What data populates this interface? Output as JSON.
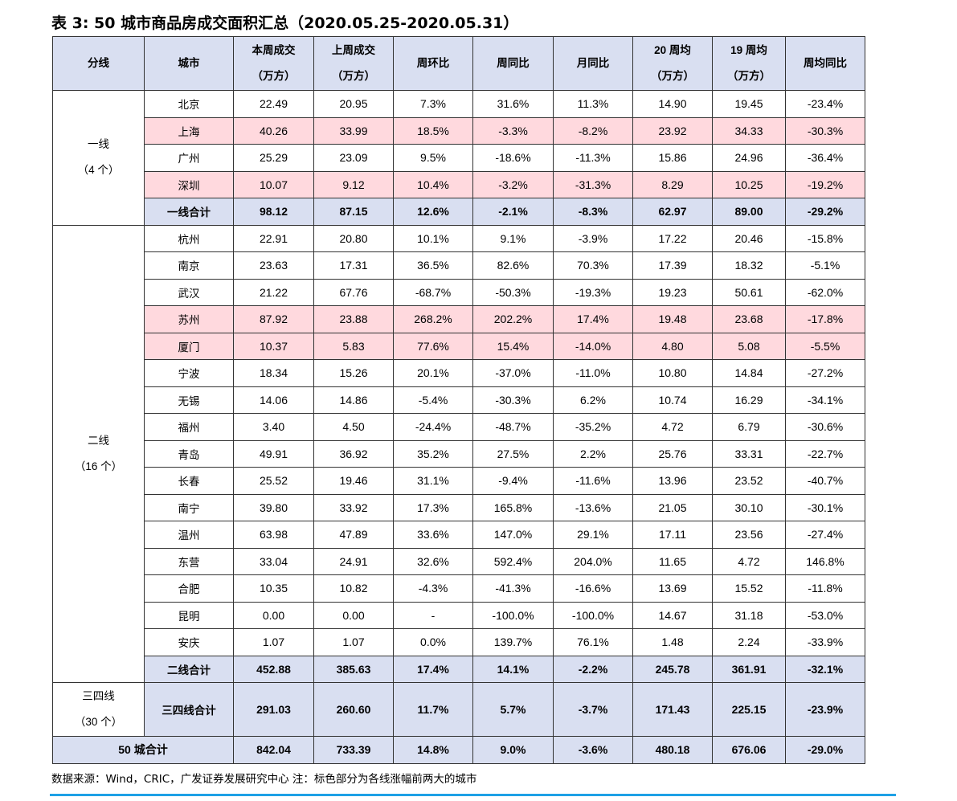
{
  "title": "表 3:  50 城市商品房成交面积汇总（2020.05.25-2020.05.31）",
  "header": [
    "分线",
    "城市",
    "本周成交|（万方）",
    "上周成交|（万方）",
    "周环比",
    "周同比",
    "月同比",
    "20 周均|（万方）",
    "19 周均|（万方）",
    "周均同比"
  ],
  "colors": {
    "header_bg": "#d9dff1",
    "highlight_bg": "#ffd9de",
    "rule": "#1ea1e6"
  },
  "groups": [
    {
      "tier": "一线|（4 个）",
      "rows": [
        {
          "city": "北京",
          "v": [
            "22.49",
            "20.95",
            "7.3%",
            "31.6%",
            "11.3%",
            "14.90",
            "19.45",
            "-23.4%"
          ]
        },
        {
          "city": "上海",
          "hl": true,
          "v": [
            "40.26",
            "33.99",
            "18.5%",
            "-3.3%",
            "-8.2%",
            "23.92",
            "34.33",
            "-30.3%"
          ]
        },
        {
          "city": "广州",
          "v": [
            "25.29",
            "23.09",
            "9.5%",
            "-18.6%",
            "-11.3%",
            "15.86",
            "24.96",
            "-36.4%"
          ]
        },
        {
          "city": "深圳",
          "hl": true,
          "v": [
            "10.07",
            "9.12",
            "10.4%",
            "-3.2%",
            "-31.3%",
            "8.29",
            "10.25",
            "-19.2%"
          ]
        },
        {
          "city": "一线合计",
          "sub": true,
          "v": [
            "98.12",
            "87.15",
            "12.6%",
            "-2.1%",
            "-8.3%",
            "62.97",
            "89.00",
            "-29.2%"
          ]
        }
      ]
    },
    {
      "tier": "二线|（16 个）",
      "rows": [
        {
          "city": "杭州",
          "v": [
            "22.91",
            "20.80",
            "10.1%",
            "9.1%",
            "-3.9%",
            "17.22",
            "20.46",
            "-15.8%"
          ]
        },
        {
          "city": "南京",
          "v": [
            "23.63",
            "17.31",
            "36.5%",
            "82.6%",
            "70.3%",
            "17.39",
            "18.32",
            "-5.1%"
          ]
        },
        {
          "city": "武汉",
          "v": [
            "21.22",
            "67.76",
            "-68.7%",
            "-50.3%",
            "-19.3%",
            "19.23",
            "50.61",
            "-62.0%"
          ]
        },
        {
          "city": "苏州",
          "hl": true,
          "v": [
            "87.92",
            "23.88",
            "268.2%",
            "202.2%",
            "17.4%",
            "19.48",
            "23.68",
            "-17.8%"
          ]
        },
        {
          "city": "厦门",
          "hl": true,
          "v": [
            "10.37",
            "5.83",
            "77.6%",
            "15.4%",
            "-14.0%",
            "4.80",
            "5.08",
            "-5.5%"
          ]
        },
        {
          "city": "宁波",
          "v": [
            "18.34",
            "15.26",
            "20.1%",
            "-37.0%",
            "-11.0%",
            "10.80",
            "14.84",
            "-27.2%"
          ]
        },
        {
          "city": "无锡",
          "v": [
            "14.06",
            "14.86",
            "-5.4%",
            "-30.3%",
            "6.2%",
            "10.74",
            "16.29",
            "-34.1%"
          ]
        },
        {
          "city": "福州",
          "v": [
            "3.40",
            "4.50",
            "-24.4%",
            "-48.7%",
            "-35.2%",
            "4.72",
            "6.79",
            "-30.6%"
          ]
        },
        {
          "city": "青岛",
          "v": [
            "49.91",
            "36.92",
            "35.2%",
            "27.5%",
            "2.2%",
            "25.76",
            "33.31",
            "-22.7%"
          ]
        },
        {
          "city": "长春",
          "v": [
            "25.52",
            "19.46",
            "31.1%",
            "-9.4%",
            "-11.6%",
            "13.96",
            "23.52",
            "-40.7%"
          ]
        },
        {
          "city": "南宁",
          "v": [
            "39.80",
            "33.92",
            "17.3%",
            "165.8%",
            "-13.6%",
            "21.05",
            "30.10",
            "-30.1%"
          ]
        },
        {
          "city": "温州",
          "v": [
            "63.98",
            "47.89",
            "33.6%",
            "147.0%",
            "29.1%",
            "17.11",
            "23.56",
            "-27.4%"
          ]
        },
        {
          "city": "东营",
          "v": [
            "33.04",
            "24.91",
            "32.6%",
            "592.4%",
            "204.0%",
            "11.65",
            "4.72",
            "146.8%"
          ]
        },
        {
          "city": "合肥",
          "v": [
            "10.35",
            "10.82",
            "-4.3%",
            "-41.3%",
            "-16.6%",
            "13.69",
            "15.52",
            "-11.8%"
          ]
        },
        {
          "city": "昆明",
          "v": [
            "0.00",
            "0.00",
            "-",
            "-100.0%",
            "-100.0%",
            "14.67",
            "31.18",
            "-53.0%"
          ]
        },
        {
          "city": "安庆",
          "v": [
            "1.07",
            "1.07",
            "0.0%",
            "139.7%",
            "76.1%",
            "1.48",
            "2.24",
            "-33.9%"
          ]
        },
        {
          "city": "二线合计",
          "sub": true,
          "v": [
            "452.88",
            "385.63",
            "17.4%",
            "14.1%",
            "-2.2%",
            "245.78",
            "361.91",
            "-32.1%"
          ]
        }
      ]
    },
    {
      "tier": "三四线|（30 个）",
      "tall": true,
      "rows": [
        {
          "city": "三四线合计",
          "sub": true,
          "v": [
            "291.03",
            "260.60",
            "11.7%",
            "5.7%",
            "-3.7%",
            "171.43",
            "225.15",
            "-23.9%"
          ]
        }
      ]
    }
  ],
  "total": {
    "label": "50 城合计",
    "v": [
      "842.04",
      "733.39",
      "14.8%",
      "9.0%",
      "-3.6%",
      "480.18",
      "676.06",
      "-29.0%"
    ]
  },
  "note": "数据来源：Wind，CRIC，广发证券发展研究中心    注：标色部分为各线涨幅前两大的城市"
}
